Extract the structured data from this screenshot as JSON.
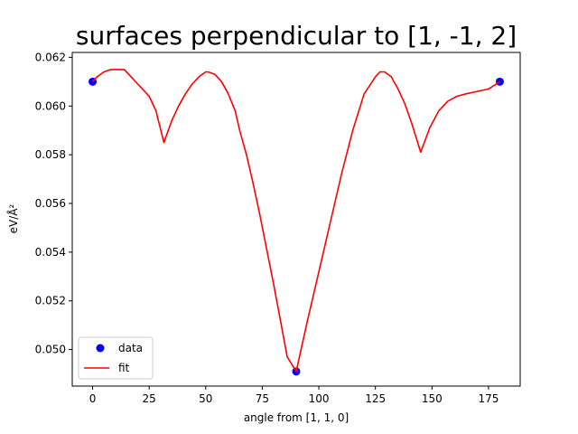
{
  "chart_data": {
    "type": "line",
    "title": "surfaces perpendicular to [1, -1, 2]",
    "xlabel": "angle from [1, 1, 0]",
    "ylabel": "eV/Å²",
    "xlim": [
      -9,
      189
    ],
    "ylim": [
      0.0485,
      0.0622
    ],
    "xticks": [
      0,
      25,
      50,
      75,
      100,
      125,
      150,
      175
    ],
    "yticks": [
      0.05,
      0.052,
      0.054,
      0.056,
      0.058,
      0.06,
      0.062
    ],
    "ytick_labels": [
      "0.050",
      "0.052",
      "0.054",
      "0.056",
      "0.058",
      "0.060",
      "0.062"
    ],
    "grid": false,
    "legend_position": "lower-left",
    "series": [
      {
        "name": "data",
        "kind": "points",
        "color": "#0000ff",
        "x": [
          0,
          90,
          180
        ],
        "y": [
          0.061,
          0.0491,
          0.061
        ]
      },
      {
        "name": "fit",
        "kind": "line",
        "color": "#ff0000",
        "x": [
          0,
          2,
          5,
          8,
          11,
          14,
          17,
          20,
          22,
          25,
          28,
          31.5,
          35,
          38,
          41,
          44,
          47,
          50,
          51,
          54,
          57,
          60,
          63,
          65,
          68,
          71,
          74,
          77,
          80,
          83,
          86,
          90,
          95,
          100,
          105,
          110,
          115,
          120,
          125,
          127,
          129,
          132,
          135,
          138,
          141,
          145,
          149,
          153,
          157,
          161,
          165,
          170,
          175,
          180
        ],
        "y": [
          0.061,
          0.0612,
          0.0614,
          0.0615,
          0.0615,
          0.0615,
          0.0612,
          0.0609,
          0.0607,
          0.0604,
          0.0598,
          0.0585,
          0.0594,
          0.06,
          0.0605,
          0.0609,
          0.0612,
          0.0614,
          0.0614,
          0.0613,
          0.061,
          0.0605,
          0.0598,
          0.059,
          0.058,
          0.0568,
          0.0555,
          0.0541,
          0.0527,
          0.0512,
          0.0497,
          0.0491,
          0.0512,
          0.0532,
          0.0552,
          0.0572,
          0.059,
          0.0605,
          0.0612,
          0.0614,
          0.0614,
          0.0612,
          0.0607,
          0.0601,
          0.0593,
          0.0581,
          0.0591,
          0.0598,
          0.0602,
          0.0604,
          0.0605,
          0.0606,
          0.0607,
          0.061
        ]
      }
    ]
  }
}
